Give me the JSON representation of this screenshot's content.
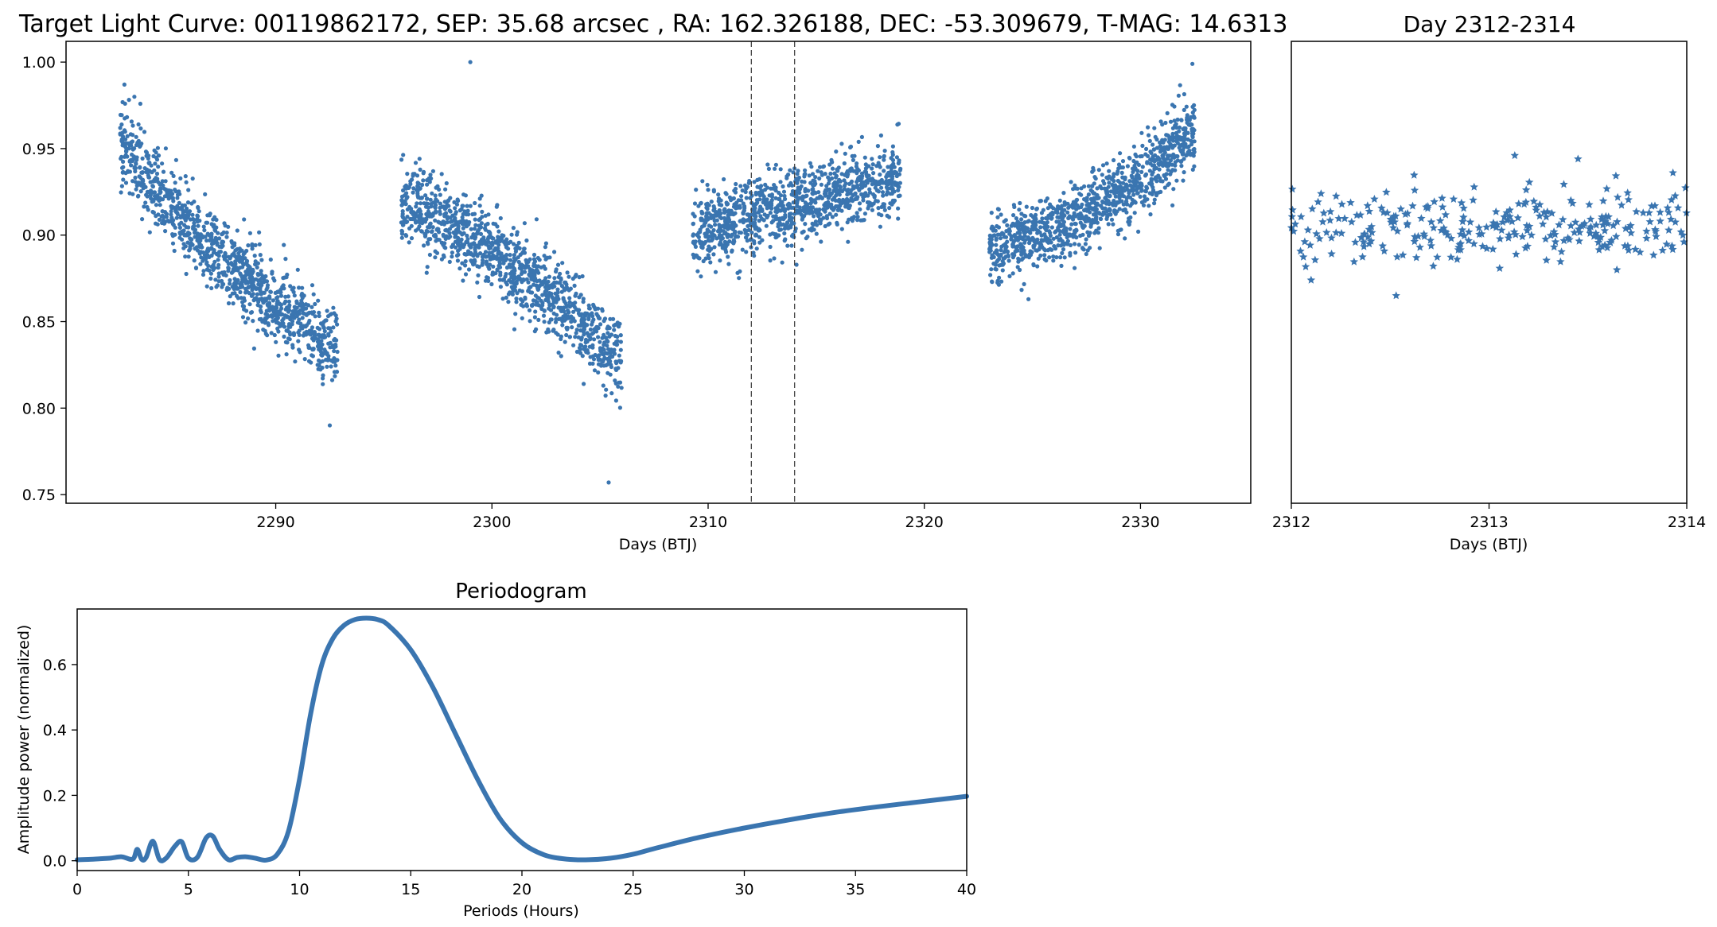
{
  "colors": {
    "series": "#3a75b0",
    "axes": "#000000",
    "vline": "#444444"
  },
  "chart_data": [
    {
      "id": "main",
      "type": "scatter",
      "title": "Target Light Curve: 00119862172, SEP: 35.68 arcsec , RA: 162.326188, DEC: -53.309679, T-MAG: 14.6313",
      "xlabel": "Days (BTJ)",
      "ylabel": "",
      "xlim": [
        2280.3,
        2335.1
      ],
      "ylim": [
        0.745,
        1.012
      ],
      "xticks": [
        2290,
        2300,
        2310,
        2320,
        2330
      ],
      "xtick_labels": [
        "2290",
        "2300",
        "2310",
        "2320",
        "2330"
      ],
      "yticks": [
        0.75,
        0.8,
        0.85,
        0.9,
        0.95,
        1.0
      ],
      "ytick_labels": [
        "0.75",
        "0.80",
        "0.85",
        "0.90",
        "0.95",
        "1.00"
      ],
      "vlines": [
        2312,
        2314
      ],
      "marker": "circle",
      "segments": [
        {
          "x_range": [
            2282.8,
            2292.9
          ],
          "y_start": 0.953,
          "y_end": 0.832,
          "curve": 0.3,
          "scatter": 0.011
        },
        {
          "x_range": [
            2295.8,
            2306.0
          ],
          "y_start": 0.921,
          "y_end": 0.826,
          "curve": -0.35,
          "scatter": 0.011
        },
        {
          "x_range": [
            2309.3,
            2318.9
          ],
          "y_start": 0.901,
          "y_end": 0.932,
          "curve": 0.2,
          "scatter": 0.011
        },
        {
          "x_range": [
            2323.0,
            2332.5
          ],
          "y_start": 0.893,
          "y_end": 0.961,
          "curve": -0.7,
          "scatter": 0.01
        }
      ],
      "outliers": [
        [
          2299.0,
          1.0
        ],
        [
          2305.4,
          0.757
        ],
        [
          2292.5,
          0.79
        ],
        [
          2283.0,
          0.987
        ],
        [
          2332.4,
          0.999
        ]
      ]
    },
    {
      "id": "zoom",
      "type": "scatter",
      "title": "Day 2312-2314",
      "xlabel": "Days (BTJ)",
      "ylabel": "",
      "xlim": [
        2312,
        2314
      ],
      "ylim": [
        0.745,
        1.012
      ],
      "xticks": [
        2312,
        2313,
        2314
      ],
      "xtick_labels": [
        "2312",
        "2313",
        "2314"
      ],
      "marker": "star",
      "segments": [
        {
          "x_range": [
            2312.0,
            2314.0
          ],
          "y_start": 0.905,
          "y_end": 0.907,
          "curve": 0.0,
          "scatter": 0.011
        }
      ],
      "outliers": [
        [
          2312.53,
          0.865
        ],
        [
          2313.13,
          0.946
        ],
        [
          2313.45,
          0.944
        ],
        [
          2313.93,
          0.936
        ],
        [
          2312.1,
          0.874
        ]
      ]
    },
    {
      "id": "periodogram",
      "type": "line",
      "title": "Periodogram",
      "xlabel": "Periods (Hours)",
      "ylabel": "Amplitude power (normalized)",
      "xlim": [
        0,
        40
      ],
      "ylim": [
        -0.03,
        0.77
      ],
      "xticks": [
        0,
        5,
        10,
        15,
        20,
        25,
        30,
        35,
        40
      ],
      "xtick_labels": [
        "0",
        "5",
        "10",
        "15",
        "20",
        "25",
        "30",
        "35",
        "40"
      ],
      "yticks": [
        0.0,
        0.2,
        0.4,
        0.6
      ],
      "ytick_labels": [
        "0.0",
        "0.2",
        "0.4",
        "0.6"
      ],
      "x": [
        0,
        0.5,
        1.0,
        1.5,
        2.0,
        2.5,
        2.7,
        2.9,
        3.1,
        3.4,
        3.7,
        4.0,
        4.4,
        4.7,
        5.0,
        5.4,
        5.8,
        6.1,
        6.4,
        6.8,
        7.2,
        7.6,
        8.0,
        8.5,
        9.0,
        9.5,
        10.0,
        10.5,
        11.0,
        11.5,
        12.0,
        12.5,
        13.0,
        13.5,
        14.0,
        15.0,
        16.0,
        17.0,
        18.0,
        19.0,
        20.0,
        21.0,
        22.0,
        23.0,
        24.0,
        25.0,
        26.0,
        28.0,
        30.0,
        32.0,
        34.0,
        36.0,
        38.0,
        40.0
      ],
      "y": [
        0.003,
        0.004,
        0.006,
        0.008,
        0.012,
        0.005,
        0.035,
        0.004,
        0.01,
        0.06,
        0.004,
        0.008,
        0.045,
        0.058,
        0.008,
        0.01,
        0.07,
        0.075,
        0.035,
        0.003,
        0.01,
        0.012,
        0.008,
        0.002,
        0.02,
        0.09,
        0.25,
        0.45,
        0.6,
        0.68,
        0.72,
        0.738,
        0.742,
        0.738,
        0.72,
        0.645,
        0.53,
        0.39,
        0.25,
        0.13,
        0.055,
        0.018,
        0.005,
        0.003,
        0.008,
        0.02,
        0.038,
        0.072,
        0.1,
        0.125,
        0.147,
        0.165,
        0.181,
        0.197
      ]
    }
  ]
}
